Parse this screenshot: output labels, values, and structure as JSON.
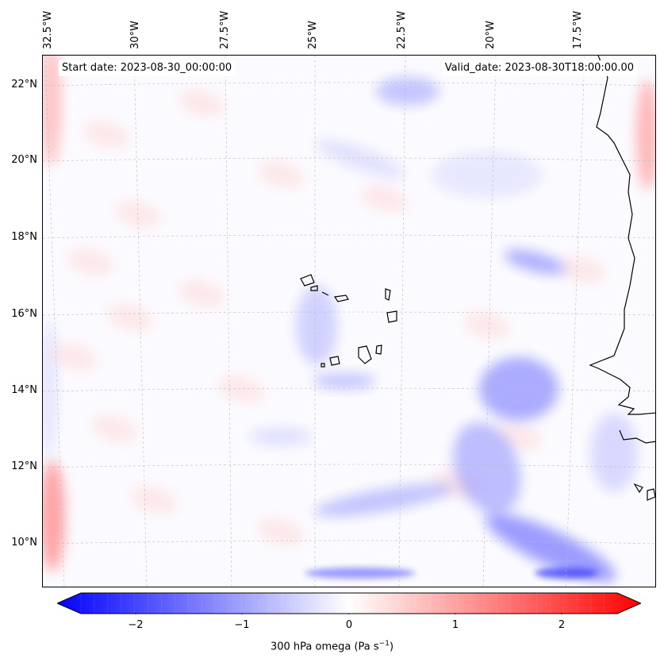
{
  "header": {
    "start_date": "Start date: 2023-08-30_00:00:00",
    "valid_date": "Valid_date: 2023-08-30T18:00:00.00"
  },
  "map": {
    "lon_labels": [
      "32.5°W",
      "30°W",
      "27.5°W",
      "25°W",
      "22.5°W",
      "20°W",
      "17.5°W"
    ],
    "lat_labels": [
      "22°N",
      "20°N",
      "18°N",
      "16°N",
      "14°N",
      "12°N",
      "10°N"
    ],
    "field": "300 hPa omega",
    "colormap": "bwr"
  },
  "colorbar": {
    "ticks": [
      "−2",
      "−1",
      "0",
      "1",
      "2"
    ],
    "label": "300 hPa omega (Pa s",
    "label_sup": "−1",
    "label_end": ")",
    "min_color": "#0000ff",
    "mid_color": "#ffffff",
    "max_color": "#ff0000"
  }
}
